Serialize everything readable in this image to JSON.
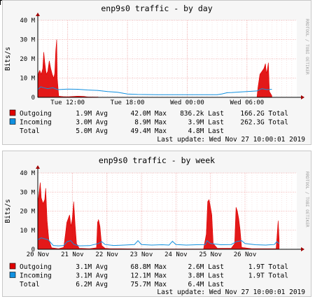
{
  "colors": {
    "outgoing": "#e00000",
    "incoming": "#1090e0",
    "grid": "#f0a0a0",
    "axis": "#000000",
    "plot_bg": "#ffffff",
    "panel_bg": "#f6f6f6"
  },
  "chart_data": [
    {
      "type": "line",
      "title": "enp9s0 traffic - by day",
      "ylabel": "Bits/s",
      "watermark": "RRDTOOL / TOBI OETIKER",
      "ylim": [
        0,
        40000000
      ],
      "yticks": [
        {
          "value": 0,
          "label": "0"
        },
        {
          "value": 10000000,
          "label": "10 M"
        },
        {
          "value": 20000000,
          "label": "20 M"
        },
        {
          "value": 30000000,
          "label": "30 M"
        },
        {
          "value": 40000000,
          "label": "40 M"
        }
      ],
      "x_range_hours": [
        0,
        26
      ],
      "x_unit": "hours",
      "xticks": [
        {
          "x": 3,
          "label": "Tue 12:00"
        },
        {
          "x": 9,
          "label": "Tue 18:00"
        },
        {
          "x": 15,
          "label": "Wed 00:00"
        },
        {
          "x": 21,
          "label": "Wed 06:00"
        }
      ],
      "series": [
        {
          "name": "Outgoing",
          "color": "#e00000",
          "fill": true,
          "points": [
            [
              0,
              11000000
            ],
            [
              0.1,
              13000000
            ],
            [
              0.2,
              14000000
            ],
            [
              0.35,
              12000000
            ],
            [
              0.5,
              15000000
            ],
            [
              0.6,
              23500000
            ],
            [
              0.7,
              18000000
            ],
            [
              0.85,
              12000000
            ],
            [
              1.0,
              13500000
            ],
            [
              1.15,
              19000000
            ],
            [
              1.3,
              15000000
            ],
            [
              1.45,
              12000000
            ],
            [
              1.6,
              10000000
            ],
            [
              1.7,
              12500000
            ],
            [
              1.8,
              24000000
            ],
            [
              1.9,
              30000000
            ],
            [
              1.95,
              10000000
            ],
            [
              2.1,
              600000
            ],
            [
              2.5,
              400000
            ],
            [
              3.0,
              300000
            ],
            [
              4.0,
              600000
            ],
            [
              4.6,
              500000
            ],
            [
              5.0,
              200000
            ],
            [
              6.0,
              150000
            ],
            [
              6.2,
              50000
            ],
            [
              7,
              30000
            ],
            [
              10,
              20000
            ],
            [
              15,
              20000
            ],
            [
              20,
              30000
            ],
            [
              22,
              30000
            ],
            [
              22.1,
              5000000
            ],
            [
              22.3,
              12000000
            ],
            [
              22.5,
              13500000
            ],
            [
              22.7,
              15000000
            ],
            [
              22.85,
              17500000
            ],
            [
              22.95,
              12500000
            ],
            [
              23.05,
              14500000
            ],
            [
              23.15,
              18000000
            ],
            [
              23.25,
              3000000
            ],
            [
              23.5,
              800000
            ]
          ]
        },
        {
          "name": "Incoming",
          "color": "#1090e0",
          "fill": false,
          "points": [
            [
              0,
              4000000
            ],
            [
              0.3,
              5500000
            ],
            [
              0.6,
              5000000
            ],
            [
              1.0,
              4500000
            ],
            [
              1.5,
              5000000
            ],
            [
              2.0,
              4000000
            ],
            [
              3.0,
              4300000
            ],
            [
              4.0,
              4200000
            ],
            [
              5.0,
              3800000
            ],
            [
              6.0,
              3600000
            ],
            [
              7.0,
              3000000
            ],
            [
              8.0,
              2600000
            ],
            [
              9.0,
              1700000
            ],
            [
              10.0,
              1500000
            ],
            [
              12.0,
              1400000
            ],
            [
              14.0,
              1400000
            ],
            [
              16.0,
              1400000
            ],
            [
              18.0,
              1400000
            ],
            [
              18.5,
              1800000
            ],
            [
              19.0,
              2400000
            ],
            [
              19.5,
              2500000
            ],
            [
              20.0,
              2700000
            ],
            [
              21.0,
              3000000
            ],
            [
              22.0,
              3300000
            ],
            [
              22.5,
              4500000
            ],
            [
              23.0,
              4000000
            ],
            [
              23.5,
              4200000
            ]
          ]
        }
      ],
      "legend": [
        {
          "name": "Outgoing",
          "color": "#e00000",
          "avg": "1.9M Avg",
          "max": "42.0M Max",
          "last": "836.2k Last",
          "total": "166.2G Total"
        },
        {
          "name": "Incoming",
          "color": "#1090e0",
          "avg": "3.0M Avg",
          "max": "8.9M Max",
          "last": "3.9M Last",
          "total": "262.3G Total"
        },
        {
          "name": "Total",
          "color": "",
          "avg": "5.0M Avg",
          "max": "49.4M Max",
          "last": "4.8M Last",
          "total": ""
        }
      ],
      "last_update": "Last update: Wed Nov 27 10:00:01 2019"
    },
    {
      "type": "line",
      "title": "enp9s0 traffic - by week",
      "ylabel": "Bits/s",
      "watermark": "RRDTOOL / TOBI OETIKER",
      "ylim": [
        0,
        40000000
      ],
      "yticks": [
        {
          "value": 0,
          "label": "0"
        },
        {
          "value": 10000000,
          "label": "10 M"
        },
        {
          "value": 20000000,
          "label": "20 M"
        },
        {
          "value": 30000000,
          "label": "30 M"
        },
        {
          "value": 40000000,
          "label": "40 M"
        }
      ],
      "x_range_days": [
        0,
        7.5
      ],
      "x_unit": "days",
      "xticks": [
        {
          "x": 0,
          "label": "20 Nov"
        },
        {
          "x": 1,
          "label": "21 Nov"
        },
        {
          "x": 2,
          "label": "22 Nov"
        },
        {
          "x": 3,
          "label": "23 Nov"
        },
        {
          "x": 4,
          "label": "24 Nov"
        },
        {
          "x": 5,
          "label": "25 Nov"
        },
        {
          "x": 6,
          "label": "26 Nov"
        }
      ],
      "series": [
        {
          "name": "Outgoing",
          "color": "#e00000",
          "fill": true,
          "points": [
            [
              0,
              24000000
            ],
            [
              0.04,
              30000000
            ],
            [
              0.07,
              35000000
            ],
            [
              0.1,
              27000000
            ],
            [
              0.15,
              24000000
            ],
            [
              0.2,
              26000000
            ],
            [
              0.23,
              32000000
            ],
            [
              0.27,
              15000000
            ],
            [
              0.32,
              5000000
            ],
            [
              0.4,
              800000
            ],
            [
              0.6,
              300000
            ],
            [
              0.75,
              1000000
            ],
            [
              0.8,
              8000000
            ],
            [
              0.84,
              14000000
            ],
            [
              0.88,
              16000000
            ],
            [
              0.92,
              18000000
            ],
            [
              0.96,
              12000000
            ],
            [
              1.0,
              16000000
            ],
            [
              1.04,
              25000000
            ],
            [
              1.08,
              13000000
            ],
            [
              1.12,
              3000000
            ],
            [
              1.2,
              500000
            ],
            [
              1.5,
              300000
            ],
            [
              1.7,
              800000
            ],
            [
              1.73,
              14000000
            ],
            [
              1.76,
              15500000
            ],
            [
              1.8,
              12000000
            ],
            [
              1.85,
              2000000
            ],
            [
              1.95,
              500000
            ],
            [
              2.1,
              300000
            ],
            [
              2.4,
              300000
            ],
            [
              3.0,
              200000
            ],
            [
              4.0,
              200000
            ],
            [
              4.8,
              200000
            ],
            [
              4.88,
              8000000
            ],
            [
              4.92,
              25000000
            ],
            [
              4.96,
              26000000
            ],
            [
              5.0,
              22000000
            ],
            [
              5.04,
              18000000
            ],
            [
              5.08,
              3000000
            ],
            [
              5.2,
              500000
            ],
            [
              5.6,
              500000
            ],
            [
              5.7,
              3000000
            ],
            [
              5.74,
              22000000
            ],
            [
              5.78,
              20000000
            ],
            [
              5.82,
              16000000
            ],
            [
              5.86,
              10000000
            ],
            [
              5.9,
              1000000
            ],
            [
              6.2,
              300000
            ],
            [
              6.6,
              300000
            ],
            [
              6.9,
              300000
            ],
            [
              6.96,
              15000000
            ],
            [
              6.99,
              5000000
            ]
          ]
        },
        {
          "name": "Incoming",
          "color": "#1090e0",
          "fill": false,
          "points": [
            [
              0,
              5000000
            ],
            [
              0.1,
              6000000
            ],
            [
              0.3,
              5000000
            ],
            [
              0.45,
              2000000
            ],
            [
              0.6,
              1800000
            ],
            [
              0.75,
              2000000
            ],
            [
              0.85,
              4000000
            ],
            [
              0.95,
              4500000
            ],
            [
              1.05,
              2500000
            ],
            [
              1.2,
              1800000
            ],
            [
              1.5,
              1900000
            ],
            [
              1.75,
              3000000
            ],
            [
              1.85,
              4000000
            ],
            [
              1.95,
              2500000
            ],
            [
              2.2,
              2000000
            ],
            [
              2.5,
              2200000
            ],
            [
              2.8,
              2500000
            ],
            [
              2.9,
              4500000
            ],
            [
              3.0,
              2500000
            ],
            [
              3.3,
              2200000
            ],
            [
              3.6,
              2400000
            ],
            [
              3.8,
              2200000
            ],
            [
              3.9,
              4200000
            ],
            [
              4.0,
              2500000
            ],
            [
              4.3,
              2200000
            ],
            [
              4.6,
              2400000
            ],
            [
              4.85,
              2500000
            ],
            [
              4.9,
              4500000
            ],
            [
              5.0,
              3000000
            ],
            [
              5.3,
              2400000
            ],
            [
              5.6,
              2500000
            ],
            [
              5.75,
              4000000
            ],
            [
              5.9,
              4500000
            ],
            [
              6.0,
              3000000
            ],
            [
              6.3,
              2400000
            ],
            [
              6.6,
              2200000
            ],
            [
              6.85,
              2500000
            ],
            [
              6.92,
              4000000
            ],
            [
              6.99,
              3000000
            ]
          ]
        }
      ],
      "legend": [
        {
          "name": "Outgoing",
          "color": "#e00000",
          "avg": "3.1M Avg",
          "max": "68.8M Max",
          "last": "2.6M Last",
          "total": "1.9T Total"
        },
        {
          "name": "Incoming",
          "color": "#1090e0",
          "avg": "3.1M Avg",
          "max": "12.1M Max",
          "last": "3.8M Last",
          "total": "1.9T Total"
        },
        {
          "name": "Total",
          "color": "",
          "avg": "6.2M Avg",
          "max": "75.7M Max",
          "last": "6.4M Last",
          "total": ""
        }
      ],
      "last_update": "Last update: Wed Nov 27 10:00:01 2019"
    }
  ]
}
